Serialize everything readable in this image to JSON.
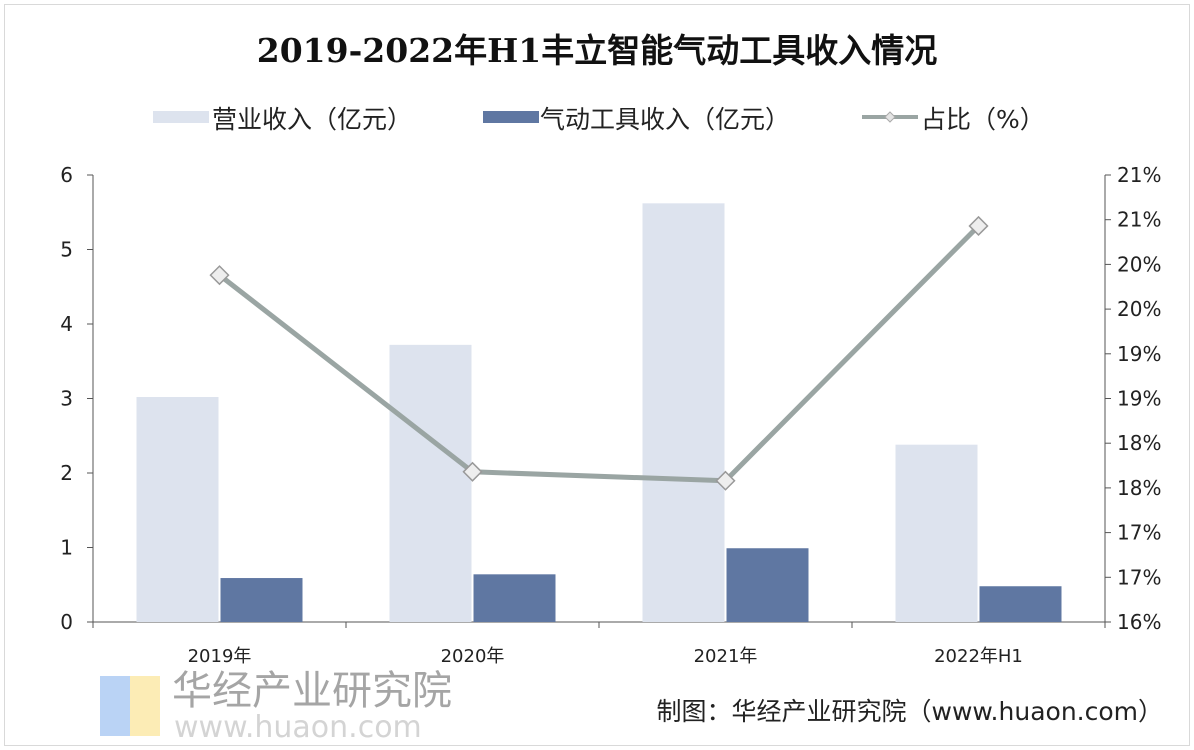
{
  "chart_data": {
    "type": "bar",
    "title": "2019-2022年H1丰立智能气动工具收入情况",
    "categories": [
      "2019年",
      "2020年",
      "2021年",
      "2022年H1"
    ],
    "series": [
      {
        "name": "营业收入（亿元）",
        "type": "bar",
        "axis": "left",
        "color": "#dde3ee",
        "values": [
          3.02,
          3.72,
          5.62,
          2.38
        ]
      },
      {
        "name": "气动工具收入（亿元）",
        "type": "bar",
        "axis": "left",
        "color": "#5f77a2",
        "values": [
          0.59,
          0.64,
          0.99,
          0.48
        ]
      },
      {
        "name": "占比（%）",
        "type": "line",
        "axis": "right",
        "color": "#9aa5a3",
        "marker": "diamond",
        "values": [
          19.88,
          17.68,
          17.58,
          20.43
        ]
      }
    ],
    "left_axis": {
      "range": [
        0,
        6
      ],
      "ticks": [
        "0",
        "1",
        "2",
        "3",
        "4",
        "5",
        "6"
      ]
    },
    "right_axis": {
      "range": [
        16,
        21
      ],
      "ticks": [
        "16%",
        "17%",
        "17%",
        "18%",
        "18%",
        "19%",
        "19%",
        "20%",
        "20%",
        "21%",
        "21%"
      ]
    },
    "grid": false,
    "legend_position": "top"
  },
  "source": "制图：华经产业研究院（www.huaon.com）",
  "watermark": {
    "name": "华经产业研究院",
    "url": "www.huaon.com"
  }
}
